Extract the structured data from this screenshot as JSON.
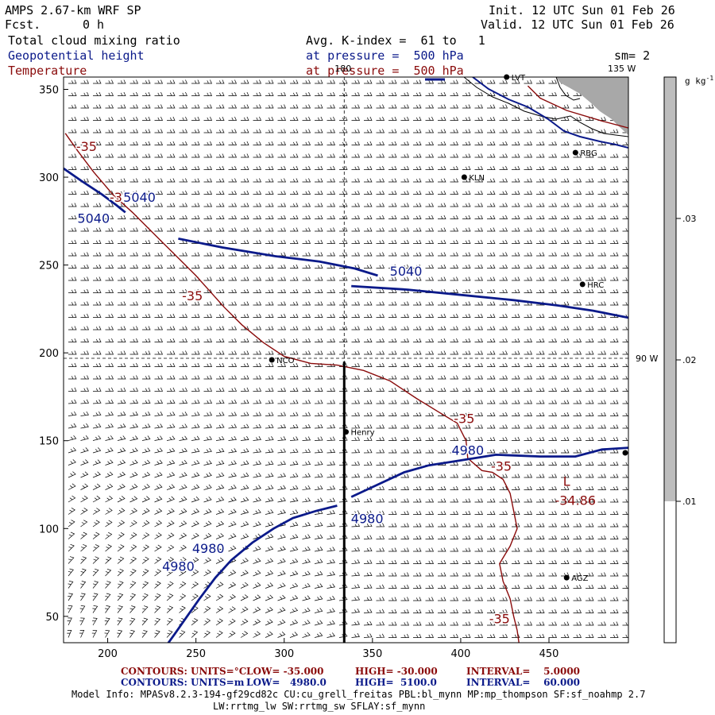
{
  "header": {
    "model": "AMPS 2.67-km WRF SP",
    "fcst_label": "Fcst.",
    "fcst_value": "0 h",
    "init": "Init. 12 UTC Sun 01 Feb 26",
    "valid": "Valid. 12 UTC Sun 01 Feb 26",
    "field1": "Total cloud mixing ratio",
    "field1_info": "Avg. K-index =  61 to   1",
    "field2": "Geopotential height",
    "field2_info": "at pressure =  500 hPa",
    "smoothing": "sm= 2",
    "field3": "Temperature",
    "field3_info": "at pressure =  500 hPa"
  },
  "colors": {
    "height_contour": "#0b1a8a",
    "temperature_contour": "#8a0b0b",
    "cloud_shade": "#bdbdbd",
    "terrain": "#a8a8a8"
  },
  "chart_data": {
    "type": "contour",
    "xlim": [
      175,
      495
    ],
    "ylim": [
      35,
      357
    ],
    "x_ticks": [
      200,
      250,
      300,
      350,
      400,
      450
    ],
    "y_ticks": [
      50,
      100,
      150,
      200,
      250,
      300,
      350
    ],
    "meridians": [
      {
        "label": "180",
        "x": 334
      },
      {
        "label": "135 W",
        "x": 490
      },
      {
        "label": "90 W",
        "x": 495
      }
    ],
    "cross_section_x": 334,
    "cross_section_y": [
      35,
      195
    ],
    "stations": [
      {
        "name": "RBG",
        "x": 465,
        "y": 314
      },
      {
        "name": "KLN",
        "x": 402,
        "y": 300
      },
      {
        "name": "HRC",
        "x": 469,
        "y": 239
      },
      {
        "name": "NCO",
        "x": 293,
        "y": 196
      },
      {
        "name": "Henry",
        "x": 335,
        "y": 155
      },
      {
        "name": "AGZ",
        "x": 460,
        "y": 72
      },
      {
        "name": "LVT",
        "x": 426,
        "y": 357
      }
    ],
    "height_contours": [
      {
        "level": 5040,
        "points": [
          [
            175,
            305
          ],
          [
            185,
            298
          ],
          [
            197,
            290
          ],
          [
            205,
            284
          ],
          [
            210,
            280
          ]
        ],
        "labels": [
          [
            192,
            274
          ]
        ]
      },
      {
        "level": 5040,
        "points": [
          [
            240,
            265
          ],
          [
            265,
            260
          ],
          [
            295,
            255
          ],
          [
            320,
            252
          ],
          [
            340,
            248
          ],
          [
            353,
            244
          ]
        ],
        "labels": [
          [
            218,
            286
          ]
        ]
      },
      {
        "level": 5040,
        "points": [
          [
            338,
            238
          ],
          [
            370,
            236
          ],
          [
            400,
            233
          ],
          [
            430,
            230
          ],
          [
            455,
            227
          ],
          [
            475,
            224
          ],
          [
            495,
            220
          ]
        ],
        "labels": [
          [
            369,
            244
          ]
        ]
      },
      {
        "level": 4980,
        "points": [
          [
            233,
            33
          ],
          [
            238,
            40
          ],
          [
            245,
            50
          ],
          [
            252,
            60
          ],
          [
            261,
            72
          ],
          [
            270,
            82
          ],
          [
            282,
            92
          ],
          [
            294,
            100
          ],
          [
            305,
            106
          ],
          [
            318,
            110
          ],
          [
            330,
            113
          ]
        ],
        "labels": [
          [
            240,
            76
          ],
          [
            257,
            86
          ],
          [
            347,
            103
          ]
        ]
      },
      {
        "level": 4980,
        "points": [
          [
            338,
            118
          ],
          [
            353,
            125
          ],
          [
            368,
            132
          ],
          [
            382,
            136
          ],
          [
            395,
            138
          ],
          [
            420,
            142
          ],
          [
            445,
            141
          ],
          [
            465,
            141
          ],
          [
            480,
            145
          ],
          [
            495,
            146
          ]
        ],
        "labels": [
          [
            404,
            142
          ]
        ]
      }
    ],
    "temperature_contours": [
      {
        "level": -35,
        "points": [
          [
            176,
            325
          ],
          [
            183,
            315
          ],
          [
            192,
            303
          ],
          [
            203,
            290
          ],
          [
            214,
            280
          ],
          [
            222,
            272
          ],
          [
            232,
            262
          ],
          [
            240,
            254
          ],
          [
            250,
            244
          ],
          [
            258,
            235
          ],
          [
            266,
            226
          ],
          [
            276,
            216
          ],
          [
            288,
            206
          ],
          [
            300,
            198
          ],
          [
            315,
            194
          ],
          [
            330,
            193
          ],
          [
            345,
            190
          ],
          [
            360,
            184
          ],
          [
            375,
            174
          ],
          [
            388,
            166
          ],
          [
            398,
            160
          ],
          [
            403,
            150
          ],
          [
            404,
            140
          ],
          [
            412,
            133
          ],
          [
            418,
            132
          ],
          [
            424,
            128
          ],
          [
            428,
            120
          ],
          [
            430,
            110
          ],
          [
            432,
            100
          ],
          [
            428,
            90
          ],
          [
            422,
            80
          ],
          [
            424,
            70
          ],
          [
            428,
            60
          ],
          [
            430,
            50
          ],
          [
            432,
            42
          ],
          [
            433,
            35
          ]
        ],
        "labels": [
          [
            188,
            315
          ],
          [
            207,
            286
          ],
          [
            248,
            230
          ],
          [
            402,
            160
          ],
          [
            423,
            133
          ],
          [
            422,
            46
          ]
        ]
      },
      {
        "level": -35,
        "points": [
          [
            438,
            352
          ],
          [
            445,
            345
          ],
          [
            460,
            338
          ],
          [
            480,
            332
          ],
          [
            495,
            328
          ]
        ],
        "labels": []
      }
    ],
    "extrema": [
      {
        "type": "L",
        "label": "L",
        "value": "-34.86",
        "x": 451,
        "y": 128
      }
    ],
    "colorbar": {
      "unit": "g kg",
      "unit_exp": "-1",
      "ticks": [
        ".01",
        ".02",
        ".03"
      ],
      "shaded_above": ".01"
    },
    "wind_barbs": true
  },
  "footer": {
    "contours1_label": "CONTOURS:",
    "contours1_units": "UNITS=°C",
    "contours1_low": "LOW= -35.000",
    "contours1_high": "HIGH= -30.000",
    "contours1_interval": "INTERVAL=    5.0000",
    "contours2_label": "CONTOURS:",
    "contours2_units": "UNITS=m",
    "contours2_low": "LOW=   4980.0",
    "contours2_high": "HIGH=  5100.0",
    "contours2_interval": "INTERVAL=    60.000",
    "model_info_1": "Model Info: MPASv8.2.3-194-gf29cd82c CU:cu_grell_freitas PBL:bl_mynn MP:mp_thompson SF:sf_noahmp 2.7",
    "model_info_2": "LW:rrtmg_lw SW:rrtmg_sw SFLAY:sf_mynn"
  }
}
